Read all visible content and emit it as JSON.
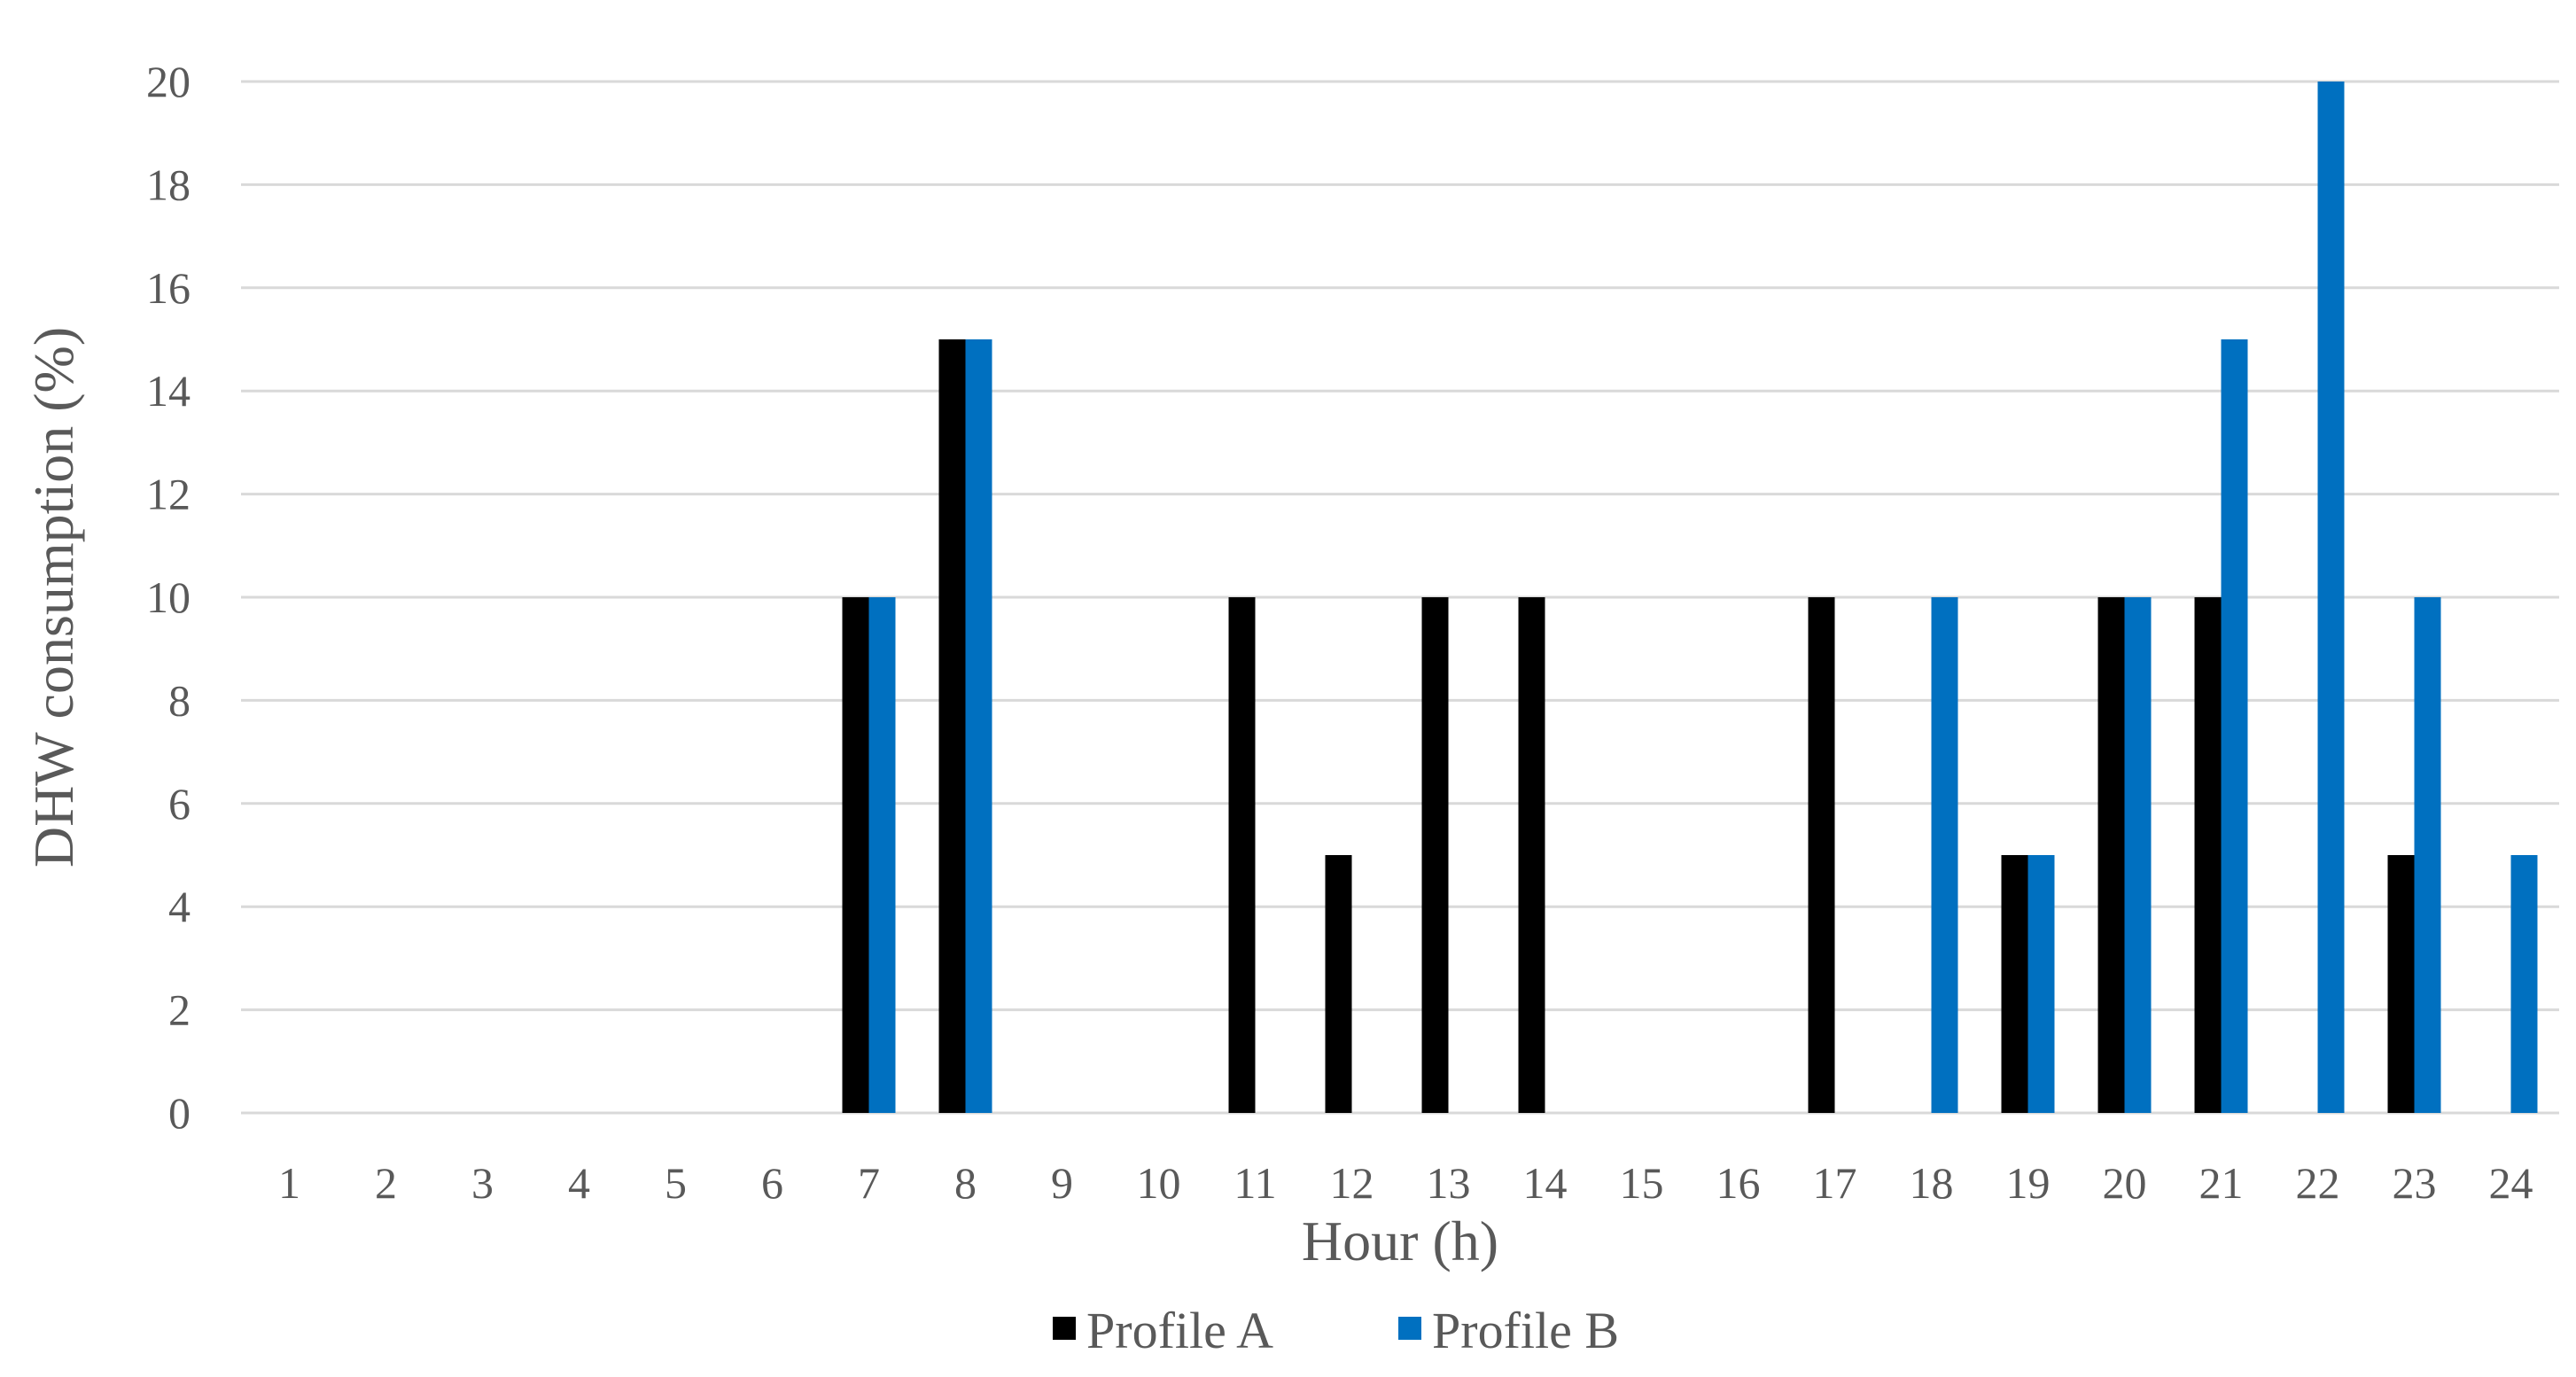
{
  "chart_data": {
    "type": "bar",
    "xlabel": "Hour (h)",
    "ylabel": "DHW consumption (%)",
    "categories": [
      "1",
      "2",
      "3",
      "4",
      "5",
      "6",
      "7",
      "8",
      "9",
      "10",
      "11",
      "12",
      "13",
      "14",
      "15",
      "16",
      "17",
      "18",
      "19",
      "20",
      "21",
      "22",
      "23",
      "24"
    ],
    "series": [
      {
        "name": "Profile A",
        "color": "#000000",
        "values": [
          0,
          0,
          0,
          0,
          0,
          0,
          10,
          15,
          0,
          0,
          10,
          5,
          10,
          10,
          0,
          0,
          10,
          0,
          5,
          10,
          10,
          0,
          5,
          0
        ]
      },
      {
        "name": "Profile B",
        "color": "#0070C0",
        "values": [
          0,
          0,
          0,
          0,
          0,
          0,
          10,
          15,
          0,
          0,
          0,
          0,
          0,
          0,
          0,
          0,
          0,
          10,
          5,
          10,
          15,
          20,
          10,
          5
        ]
      }
    ],
    "ylim": [
      0,
      20
    ],
    "yticks": [
      0,
      2,
      4,
      6,
      8,
      10,
      12,
      14,
      16,
      18,
      20
    ],
    "grid": true,
    "legend_position": "bottom-center"
  }
}
